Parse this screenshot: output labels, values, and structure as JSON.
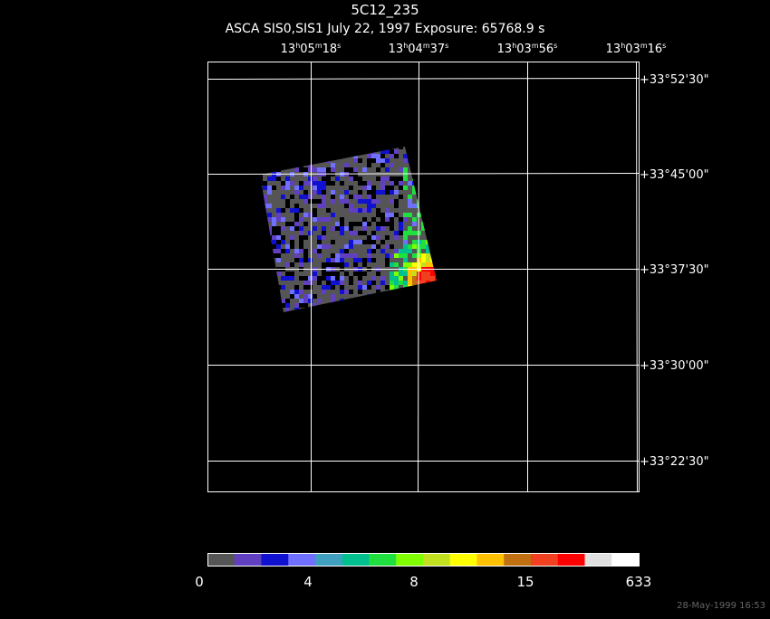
{
  "header": {
    "title": "5C12_235",
    "subtitle": "ASCA SIS0,SIS1 July 22, 1997 Exposure: 65768.9 s"
  },
  "ra_labels": [
    [
      "13",
      "h",
      "05",
      "m",
      "18",
      "s"
    ],
    [
      "13",
      "h",
      "04",
      "m",
      "37",
      "s"
    ],
    [
      "13",
      "h",
      "03",
      "m",
      "56",
      "s"
    ],
    [
      "13",
      "h",
      "03",
      "m",
      "16",
      "s"
    ]
  ],
  "dec_labels": [
    "+33°52'30\"",
    "+33°45'00\"",
    "+33°37'30\"",
    "+33°30'00\"",
    "+33°22'30\""
  ],
  "colorbar": {
    "colors": [
      "#555555",
      "#6040c0",
      "#1010d0",
      "#7070ff",
      "#40a0c0",
      "#00c090",
      "#20e040",
      "#80ff00",
      "#c0e020",
      "#ffff00",
      "#ffc000",
      "#c07010",
      "#f04020",
      "#ff0000",
      "#e0e0e0",
      "#ffffff"
    ],
    "labels": [
      "0",
      "4",
      "8",
      "15",
      "633"
    ]
  },
  "timestamp": "28-May-1999 16:53"
}
